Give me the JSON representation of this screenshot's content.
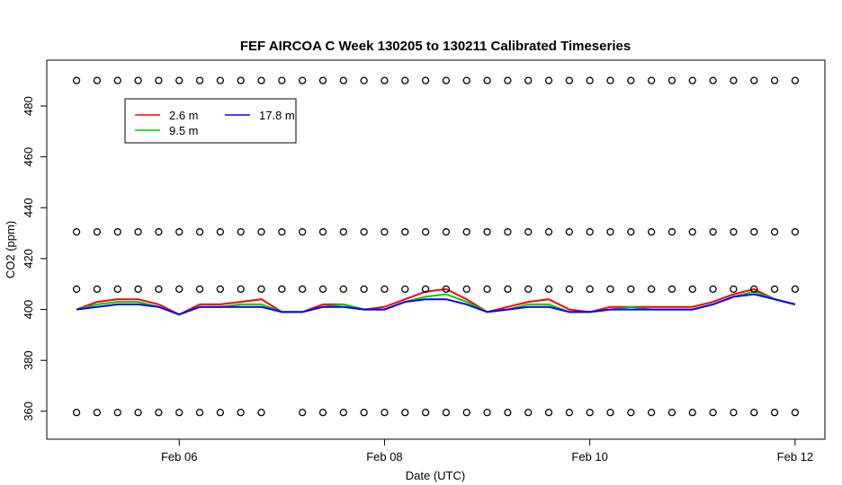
{
  "chart_data": {
    "type": "line",
    "title": "FEF AIRCOA C  Week 130205 to 130211  Calibrated Timeseries",
    "x_label": "Date (UTC)",
    "y_label": "CO2 (ppm)",
    "xlim": [
      4.71,
      12.29
    ],
    "ylim": [
      349,
      498
    ],
    "xticks": [
      {
        "value": 6,
        "label": "Feb 06"
      },
      {
        "value": 8,
        "label": "Feb 08"
      },
      {
        "value": 10,
        "label": "Feb 10"
      },
      {
        "value": 12,
        "label": "Feb 12"
      }
    ],
    "yticks": [
      360,
      380,
      400,
      420,
      440,
      460,
      480
    ],
    "x": [
      5.0,
      5.2,
      5.4,
      5.6,
      5.8,
      6.0,
      6.2,
      6.4,
      6.6,
      6.8,
      7.0,
      7.2,
      7.4,
      7.6,
      7.8,
      8.0,
      8.2,
      8.4,
      8.6,
      8.8,
      9.0,
      9.2,
      9.4,
      9.6,
      9.8,
      10.0,
      10.2,
      10.4,
      10.6,
      10.8,
      11.0,
      11.2,
      11.4,
      11.6,
      11.8,
      12.0
    ],
    "series": [
      {
        "name": "2.6 m",
        "color": "#ff0000",
        "values": [
          400,
          403,
          404,
          404,
          402,
          398,
          402,
          402,
          403,
          404,
          399,
          399,
          402,
          402,
          400,
          401,
          404,
          407,
          408,
          404,
          399,
          401,
          403,
          404,
          400,
          399,
          401,
          401,
          401,
          401,
          401,
          403,
          406,
          408,
          404,
          402
        ]
      },
      {
        "name": "9.5 m",
        "color": "#00cc00",
        "values": [
          400,
          402,
          403,
          403,
          401,
          398,
          401,
          401,
          402,
          402,
          399,
          399,
          401,
          402,
          400,
          400,
          403,
          405,
          406,
          403,
          399,
          400,
          402,
          402,
          399,
          399,
          400,
          401,
          400,
          400,
          400,
          402,
          405,
          407,
          404,
          402
        ]
      },
      {
        "name": "17.8 m",
        "color": "#0000ff",
        "values": [
          400,
          401,
          402,
          402,
          401,
          398,
          401,
          401,
          401,
          401,
          399,
          399,
          401,
          401,
          400,
          400,
          403,
          404,
          404,
          402,
          399,
          400,
          401,
          401,
          399,
          399,
          400,
          400,
          400,
          400,
          400,
          402,
          405,
          406,
          404,
          402
        ]
      },
      {
        "color": "#000000",
        "marker": "circle",
        "values": [
          490,
          490,
          490,
          490,
          490,
          490,
          490,
          490,
          490,
          490,
          490,
          490,
          490,
          490,
          490,
          490,
          490,
          490,
          490,
          490,
          490,
          490,
          490,
          490,
          490,
          490,
          490,
          490,
          490,
          490,
          490,
          490,
          490,
          490,
          490,
          490
        ]
      },
      {
        "color": "#000000",
        "marker": "circle",
        "values": [
          430.5,
          430.5,
          430.5,
          430.5,
          430.5,
          430.5,
          430.5,
          430.5,
          430.5,
          430.5,
          430.5,
          430.5,
          430.5,
          430.5,
          430.5,
          430.5,
          430.5,
          430.5,
          430.5,
          430.5,
          430.5,
          430.5,
          430.5,
          430.5,
          430.5,
          430.5,
          430.5,
          430.5,
          430.5,
          430.5,
          430.5,
          430.5,
          430.5,
          430.5,
          430.5,
          430.5
        ]
      },
      {
        "color": "#000000",
        "marker": "circle",
        "values": [
          408,
          408,
          408,
          408,
          408,
          408,
          408,
          408,
          408,
          408,
          408,
          408,
          408,
          408,
          408,
          408,
          408,
          408,
          408,
          408,
          408,
          408,
          408,
          408,
          408,
          408,
          408,
          408,
          408,
          408,
          408,
          408,
          408,
          408,
          408,
          408
        ]
      },
      {
        "color": "#000000",
        "marker": "circle",
        "values": [
          359.5,
          359.5,
          359.5,
          359.5,
          359.5,
          359.5,
          359.5,
          359.5,
          359.5,
          359.5,
          null,
          359.5,
          359.5,
          359.5,
          359.5,
          359.5,
          359.5,
          359.5,
          359.5,
          359.5,
          359.5,
          359.5,
          359.5,
          359.5,
          359.5,
          359.5,
          359.5,
          359.5,
          359.5,
          359.5,
          359.5,
          359.5,
          359.5,
          359.5,
          359.5,
          359.5
        ]
      }
    ]
  }
}
